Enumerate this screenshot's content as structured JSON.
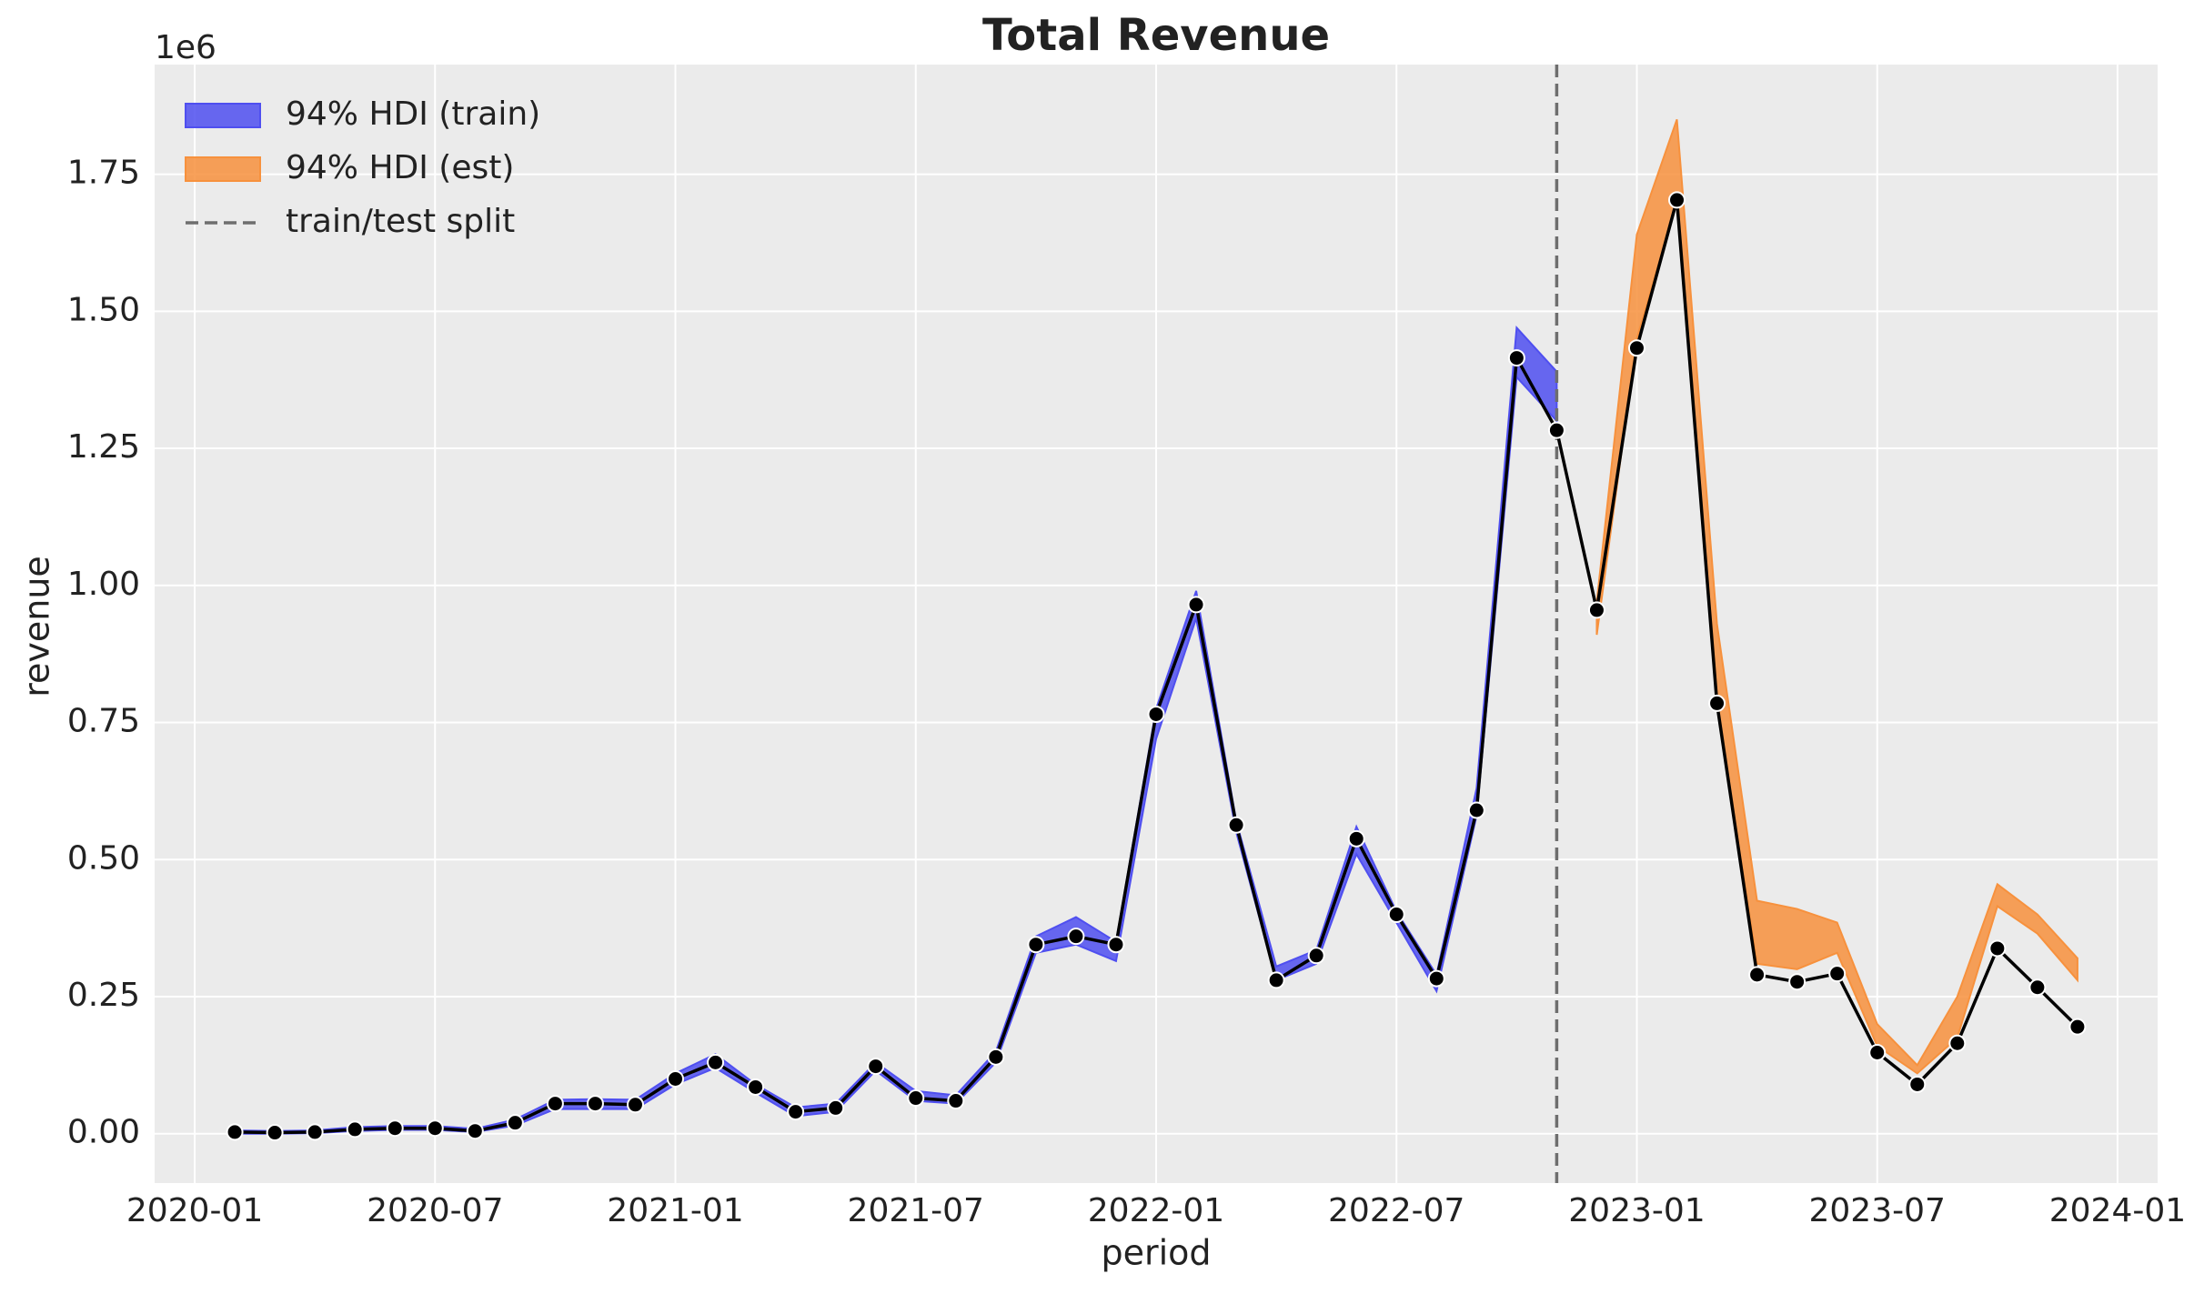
{
  "chart_data": {
    "type": "line",
    "title": "Total Revenue",
    "x_label": "period",
    "y_label": "revenue",
    "y_offset_label": "1e6",
    "x": [
      "2020-02",
      "2020-03",
      "2020-04",
      "2020-05",
      "2020-06",
      "2020-07",
      "2020-08",
      "2020-09",
      "2020-10",
      "2020-11",
      "2020-12",
      "2021-01",
      "2021-02",
      "2021-03",
      "2021-04",
      "2021-05",
      "2021-06",
      "2021-07",
      "2021-08",
      "2021-09",
      "2021-10",
      "2021-11",
      "2021-12",
      "2022-01",
      "2022-02",
      "2022-03",
      "2022-04",
      "2022-05",
      "2022-06",
      "2022-07",
      "2022-08",
      "2022-09",
      "2022-10",
      "2022-11",
      "2022-12",
      "2023-01",
      "2023-02",
      "2023-03",
      "2023-04",
      "2023-05",
      "2023-06",
      "2023-07",
      "2023-08",
      "2023-09",
      "2023-10",
      "2023-11",
      "2023-12"
    ],
    "series": [
      {
        "color": "#000000",
        "values": [
          0.003,
          0.002,
          0.003,
          0.008,
          0.01,
          0.01,
          0.005,
          0.02,
          0.055,
          0.055,
          0.053,
          0.1,
          0.13,
          0.085,
          0.04,
          0.047,
          0.123,
          0.065,
          0.06,
          0.14,
          0.345,
          0.36,
          0.345,
          0.765,
          0.965,
          0.563,
          0.28,
          0.325,
          0.538,
          0.4,
          0.283,
          0.59,
          1.415,
          1.283,
          0.955,
          1.433,
          1.703,
          0.785,
          0.29,
          0.277,
          0.292,
          0.148,
          0.09,
          0.165,
          0.338,
          0.267,
          0.195
        ]
      }
    ],
    "bands": [
      {
        "name": "94% HDI (train)",
        "color": "#4f4ff0",
        "x": [
          "2020-02",
          "2020-03",
          "2020-04",
          "2020-05",
          "2020-06",
          "2020-07",
          "2020-08",
          "2020-09",
          "2020-10",
          "2020-11",
          "2020-12",
          "2021-01",
          "2021-02",
          "2021-03",
          "2021-04",
          "2021-05",
          "2021-06",
          "2021-07",
          "2021-08",
          "2021-09",
          "2021-10",
          "2021-11",
          "2021-12",
          "2022-01",
          "2022-02",
          "2022-03",
          "2022-04",
          "2022-05",
          "2022-06",
          "2022-07",
          "2022-08",
          "2022-09",
          "2022-10",
          "2022-11"
        ],
        "lower": [
          0.0,
          0.0,
          0.001,
          0.005,
          0.007,
          0.007,
          0.003,
          0.015,
          0.045,
          0.045,
          0.045,
          0.09,
          0.12,
          0.075,
          0.032,
          0.04,
          0.115,
          0.06,
          0.055,
          0.13,
          0.33,
          0.345,
          0.315,
          0.72,
          0.94,
          0.55,
          0.28,
          0.31,
          0.51,
          0.385,
          0.26,
          0.58,
          1.38,
          1.3
        ],
        "upper": [
          0.006,
          0.005,
          0.006,
          0.012,
          0.014,
          0.014,
          0.009,
          0.026,
          0.062,
          0.063,
          0.062,
          0.11,
          0.145,
          0.09,
          0.048,
          0.055,
          0.13,
          0.078,
          0.07,
          0.15,
          0.36,
          0.395,
          0.35,
          0.775,
          0.99,
          0.57,
          0.305,
          0.335,
          0.56,
          0.405,
          0.29,
          0.63,
          1.47,
          1.39
        ]
      },
      {
        "name": "94% HDI (est)",
        "color": "#f7913d",
        "x": [
          "2022-12",
          "2023-01",
          "2023-02",
          "2023-03",
          "2023-04",
          "2023-05",
          "2023-06",
          "2023-07",
          "2023-08",
          "2023-09",
          "2023-10",
          "2023-11",
          "2023-12"
        ],
        "lower": [
          0.91,
          1.45,
          1.7,
          0.78,
          0.31,
          0.3,
          0.33,
          0.16,
          0.11,
          0.175,
          0.415,
          0.365,
          0.28
        ],
        "upper": [
          0.97,
          1.64,
          1.85,
          0.93,
          0.425,
          0.41,
          0.385,
          0.2,
          0.125,
          0.25,
          0.455,
          0.4,
          0.32
        ]
      }
    ],
    "vline": {
      "name": "train/test split",
      "x": "2022-11",
      "color": "#6e6e6e"
    },
    "xlim": [
      "2019-12",
      "2024-02"
    ],
    "xticks": [
      "2020-01",
      "2020-07",
      "2021-01",
      "2021-07",
      "2022-01",
      "2022-07",
      "2023-01",
      "2023-07",
      "2024-01"
    ],
    "ylim": [
      -0.09,
      1.95
    ],
    "yticks": [
      {
        "value": 0,
        "label": "0.00"
      },
      0.25,
      {
        "value": 0.5,
        "label": "0.50"
      },
      0.75,
      {
        "value": 1,
        "label": "1.00"
      },
      1.25,
      {
        "value": 1.5,
        "label": "1.50"
      },
      1.75
    ],
    "grid": true,
    "legend": "upper left"
  }
}
